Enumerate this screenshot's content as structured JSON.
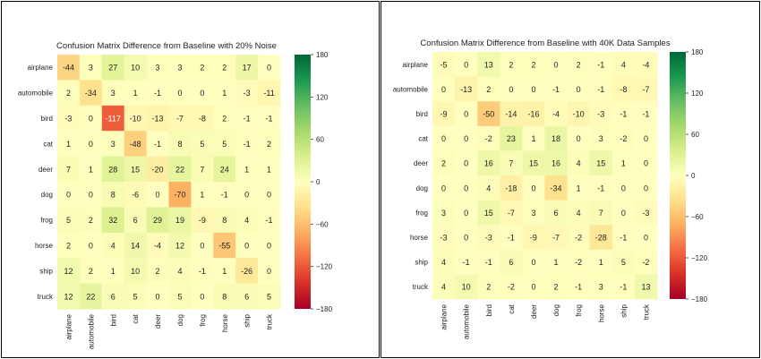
{
  "chart_data": [
    {
      "type": "heatmap",
      "title": "Confusion Matrix Difference from Baseline with 20% Noise",
      "rows": [
        "airplane",
        "automobile",
        "bird",
        "cat",
        "deer",
        "dog",
        "frog",
        "horse",
        "ship",
        "truck"
      ],
      "cols": [
        "airplane",
        "automobile",
        "bird",
        "cat",
        "deer",
        "dog",
        "frog",
        "horse",
        "ship",
        "truck"
      ],
      "values": [
        [
          -44,
          3,
          27,
          10,
          3,
          3,
          2,
          2,
          17,
          0
        ],
        [
          2,
          -34,
          3,
          1,
          -1,
          0,
          0,
          1,
          -3,
          -11
        ],
        [
          -3,
          0,
          -117,
          -10,
          -13,
          -7,
          -8,
          2,
          -1,
          -1
        ],
        [
          1,
          0,
          3,
          -48,
          -1,
          8,
          5,
          5,
          -1,
          2
        ],
        [
          7,
          1,
          28,
          15,
          -20,
          22,
          7,
          24,
          1,
          1
        ],
        [
          0,
          0,
          8,
          -6,
          0,
          -70,
          1,
          -1,
          0,
          0
        ],
        [
          5,
          2,
          32,
          6,
          29,
          19,
          -9,
          8,
          4,
          -1
        ],
        [
          2,
          0,
          4,
          14,
          -4,
          12,
          0,
          -55,
          0,
          0
        ],
        [
          12,
          2,
          1,
          10,
          2,
          4,
          -1,
          1,
          -26,
          0
        ],
        [
          12,
          22,
          6,
          5,
          0,
          5,
          0,
          8,
          6,
          5
        ]
      ],
      "colormap": "RdYlGn",
      "vmin": -180,
      "vmax": 180,
      "colorbar_ticks": [
        "180",
        "120",
        "60",
        "0",
        "−60",
        "−120",
        "−180"
      ]
    },
    {
      "type": "heatmap",
      "title": "Confusion Matrix Difference from Baseline with 40K Data Samples",
      "rows": [
        "airplane",
        "automobile",
        "bird",
        "cat",
        "deer",
        "dog",
        "frog",
        "horse",
        "ship",
        "truck"
      ],
      "cols": [
        "airplane",
        "automobile",
        "bird",
        "cat",
        "deer",
        "dog",
        "frog",
        "horse",
        "ship",
        "truck"
      ],
      "values": [
        [
          -5,
          0,
          13,
          2,
          2,
          0,
          2,
          -1,
          4,
          -4
        ],
        [
          0,
          -13,
          2,
          0,
          0,
          -1,
          0,
          -1,
          -8,
          -7
        ],
        [
          -9,
          0,
          -50,
          -14,
          -16,
          -4,
          -10,
          -3,
          -1,
          -1
        ],
        [
          0,
          0,
          -2,
          23,
          1,
          18,
          0,
          3,
          -2,
          0
        ],
        [
          2,
          0,
          16,
          7,
          15,
          16,
          4,
          15,
          1,
          0
        ],
        [
          0,
          0,
          4,
          -18,
          0,
          -34,
          1,
          -1,
          0,
          0
        ],
        [
          3,
          0,
          15,
          -7,
          3,
          6,
          4,
          7,
          0,
          -3
        ],
        [
          -3,
          0,
          -3,
          -1,
          -9,
          -7,
          -2,
          -28,
          -1,
          0
        ],
        [
          4,
          -1,
          -1,
          6,
          0,
          1,
          -2,
          1,
          5,
          -2
        ],
        [
          4,
          10,
          2,
          -2,
          0,
          2,
          -1,
          3,
          -1,
          13
        ]
      ],
      "colormap": "RdYlGn",
      "vmin": -180,
      "vmax": 180,
      "colorbar_ticks": [
        "180",
        "120",
        "60",
        "0",
        "−60",
        "−120",
        "−180"
      ]
    }
  ]
}
